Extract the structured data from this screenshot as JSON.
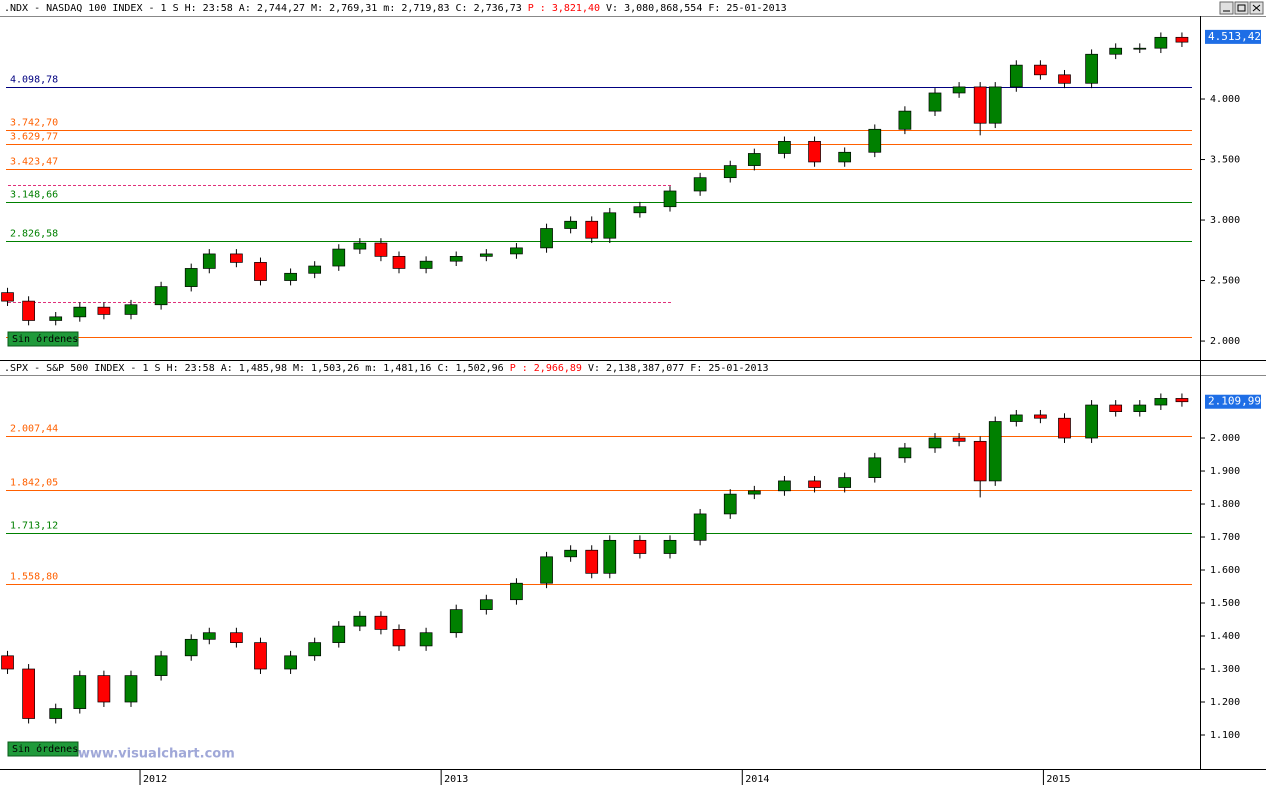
{
  "watermark": "www.visualchart.com",
  "chart_data": [
    {
      "type": "candlestick",
      "header": [
        ".NDX - NASDAQ 100 INDEX -  1 S H: 23:58 A: 2,744,27 M: 2,769,31 m: 2,719,83 C: 2,736,73",
        "P : 3,821,40",
        "V: 3,080,868,554 F: 25-01-2013"
      ],
      "annotation": "Sin órdenes",
      "up_color": "#008000",
      "down_color": "#ff0000",
      "xlim": [
        2011.535,
        2015.52
      ],
      "ylim": [
        1860,
        4686
      ],
      "yticks": [
        {
          "value": 2000,
          "label": "2.000"
        },
        {
          "value": 2500,
          "label": "2.500"
        },
        {
          "value": 3000,
          "label": "3.000"
        },
        {
          "value": 3500,
          "label": "3.500"
        },
        {
          "value": 4000,
          "label": "4.000"
        }
      ],
      "last_price": {
        "value": 4513.42,
        "label": "4.513,42"
      },
      "levels": [
        {
          "value": 4098.78,
          "label": "4.098,78",
          "color": "#000080"
        },
        {
          "value": 3742.7,
          "label": "3.742,70",
          "color": "#ff6000"
        },
        {
          "value": 3629.77,
          "label": "3.629,77",
          "color": "#ff6000"
        },
        {
          "value": 3423.47,
          "label": "3.423,47",
          "color": "#ff6000"
        },
        {
          "value": 3289,
          "color": "#e0307a",
          "style": "dashed"
        },
        {
          "value": 3148.66,
          "label": "3.148,66",
          "color": "#008000"
        },
        {
          "value": 2826.58,
          "label": "2.826,58",
          "color": "#008000"
        },
        {
          "value": 2322,
          "color": "#e0307a",
          "style": "dashed"
        },
        {
          "value": 2033,
          "color": "#ff6000"
        }
      ],
      "x": [
        2011.56,
        2011.63,
        2011.72,
        2011.8,
        2011.88,
        2011.97,
        2012.07,
        2012.17,
        2012.23,
        2012.32,
        2012.4,
        2012.5,
        2012.58,
        2012.66,
        2012.73,
        2012.8,
        2012.86,
        2012.95,
        2013.05,
        2013.15,
        2013.25,
        2013.35,
        2013.43,
        2013.5,
        2013.56,
        2013.66,
        2013.76,
        2013.86,
        2013.96,
        2014.04,
        2014.14,
        2014.24,
        2014.34,
        2014.44,
        2014.54,
        2014.64,
        2014.72,
        2014.79,
        2014.84,
        2014.91,
        2014.99,
        2015.07,
        2015.16,
        2015.24,
        2015.32,
        2015.39,
        2015.46
      ],
      "open": [
        2400,
        2330,
        2170,
        2200,
        2280,
        2220,
        2300,
        2450,
        2600,
        2720,
        2650,
        2500,
        2560,
        2620,
        2760,
        2810,
        2700,
        2600,
        2660,
        2700,
        2720,
        2770,
        2930,
        2990,
        2850,
        3060,
        3110,
        3240,
        3350,
        3450,
        3550,
        3650,
        3480,
        3560,
        3750,
        3900,
        4050,
        4100,
        3800,
        4100,
        4280,
        4200,
        4130,
        4370,
        4420,
        4420,
        4510
      ],
      "high": [
        2440,
        2370,
        2240,
        2320,
        2320,
        2340,
        2490,
        2640,
        2760,
        2760,
        2690,
        2600,
        2660,
        2800,
        2850,
        2850,
        2740,
        2700,
        2740,
        2760,
        2810,
        2970,
        3030,
        3030,
        3100,
        3150,
        3280,
        3390,
        3490,
        3590,
        3690,
        3690,
        3600,
        3790,
        3940,
        4090,
        4140,
        4140,
        4140,
        4320,
        4320,
        4240,
        4410,
        4460,
        4460,
        4550,
        4550
      ],
      "low": [
        2290,
        2130,
        2130,
        2160,
        2180,
        2180,
        2260,
        2410,
        2560,
        2610,
        2460,
        2460,
        2520,
        2580,
        2720,
        2660,
        2560,
        2560,
        2620,
        2660,
        2680,
        2730,
        2890,
        2810,
        2810,
        3020,
        3070,
        3200,
        3310,
        3410,
        3510,
        3440,
        3440,
        3520,
        3710,
        3860,
        4010,
        3700,
        3760,
        4060,
        4160,
        4090,
        4090,
        4330,
        4380,
        4380,
        4430
      ],
      "close": [
        2330,
        2170,
        2200,
        2280,
        2220,
        2300,
        2450,
        2600,
        2720,
        2650,
        2500,
        2560,
        2620,
        2760,
        2810,
        2700,
        2600,
        2660,
        2700,
        2720,
        2770,
        2930,
        2990,
        2850,
        3060,
        3110,
        3240,
        3350,
        3450,
        3550,
        3650,
        3480,
        3560,
        3750,
        3900,
        4050,
        4100,
        3800,
        4100,
        4280,
        4200,
        4130,
        4370,
        4420,
        4420,
        4510,
        4470
      ]
    },
    {
      "type": "candlestick",
      "header": [
        ".SPX - S&P 500 INDEX -  1 S H: 23:58 A: 1,485,98 M: 1,503,26 m: 1,481,16 C: 1,502,96",
        "P : 2,966,89",
        "V: 2,138,387,077 F: 25-01-2013"
      ],
      "annotation": "Sin órdenes",
      "up_color": "#008000",
      "down_color": "#ff0000",
      "xlim": [
        2011.535,
        2015.52
      ],
      "xticks": [
        2012,
        2013,
        2014,
        2015
      ],
      "ylim": [
        1000,
        2191
      ],
      "yticks": [
        {
          "value": 1100,
          "label": "1.100"
        },
        {
          "value": 1200,
          "label": "1.200"
        },
        {
          "value": 1300,
          "label": "1.300"
        },
        {
          "value": 1400,
          "label": "1.400"
        },
        {
          "value": 1500,
          "label": "1.500"
        },
        {
          "value": 1600,
          "label": "1.600"
        },
        {
          "value": 1700,
          "label": "1.700"
        },
        {
          "value": 1800,
          "label": "1.800"
        },
        {
          "value": 1900,
          "label": "1.900"
        },
        {
          "value": 2000,
          "label": "2.000"
        }
      ],
      "last_price": {
        "value": 2109.99,
        "label": "2.109,99"
      },
      "levels": [
        {
          "value": 2007.44,
          "label": "2.007,44",
          "color": "#ff6000"
        },
        {
          "value": 1842.05,
          "label": "1.842,05",
          "color": "#ff6000"
        },
        {
          "value": 1713.12,
          "label": "1.713,12",
          "color": "#008000"
        },
        {
          "value": 1558.8,
          "label": "1.558,80",
          "color": "#ff6000"
        }
      ],
      "x": [
        2011.56,
        2011.63,
        2011.72,
        2011.8,
        2011.88,
        2011.97,
        2012.07,
        2012.17,
        2012.23,
        2012.32,
        2012.4,
        2012.5,
        2012.58,
        2012.66,
        2012.73,
        2012.8,
        2012.86,
        2012.95,
        2013.05,
        2013.15,
        2013.25,
        2013.35,
        2013.43,
        2013.5,
        2013.56,
        2013.66,
        2013.76,
        2013.86,
        2013.96,
        2014.04,
        2014.14,
        2014.24,
        2014.34,
        2014.44,
        2014.54,
        2014.64,
        2014.72,
        2014.79,
        2014.84,
        2014.91,
        2014.99,
        2015.07,
        2015.16,
        2015.24,
        2015.32,
        2015.39,
        2015.46
      ],
      "open": [
        1340,
        1300,
        1150,
        1180,
        1280,
        1200,
        1280,
        1340,
        1390,
        1410,
        1380,
        1300,
        1340,
        1380,
        1430,
        1460,
        1420,
        1370,
        1410,
        1480,
        1510,
        1560,
        1640,
        1660,
        1590,
        1690,
        1650,
        1690,
        1770,
        1830,
        1840,
        1870,
        1850,
        1880,
        1940,
        1970,
        2000,
        1990,
        1870,
        2050,
        2070,
        2060,
        2000,
        2100,
        2080,
        2100,
        2120
      ],
      "high": [
        1355,
        1315,
        1195,
        1295,
        1295,
        1295,
        1355,
        1405,
        1425,
        1425,
        1395,
        1355,
        1395,
        1445,
        1475,
        1475,
        1435,
        1425,
        1495,
        1525,
        1575,
        1655,
        1675,
        1675,
        1705,
        1705,
        1705,
        1785,
        1845,
        1855,
        1885,
        1885,
        1895,
        1955,
        1985,
        2015,
        2015,
        2005,
        2065,
        2085,
        2085,
        2075,
        2115,
        2115,
        2115,
        2135,
        2135
      ],
      "low": [
        1285,
        1135,
        1135,
        1165,
        1185,
        1185,
        1265,
        1325,
        1375,
        1365,
        1285,
        1285,
        1325,
        1365,
        1415,
        1405,
        1355,
        1355,
        1395,
        1465,
        1495,
        1545,
        1625,
        1575,
        1575,
        1635,
        1635,
        1675,
        1755,
        1815,
        1825,
        1835,
        1835,
        1865,
        1925,
        1955,
        1975,
        1820,
        1855,
        2035,
        2045,
        1985,
        1985,
        2065,
        2065,
        2085,
        2095
      ],
      "close": [
        1300,
        1150,
        1180,
        1280,
        1200,
        1280,
        1340,
        1390,
        1410,
        1380,
        1300,
        1340,
        1380,
        1430,
        1460,
        1420,
        1370,
        1410,
        1480,
        1510,
        1560,
        1640,
        1660,
        1590,
        1690,
        1650,
        1690,
        1770,
        1830,
        1840,
        1870,
        1850,
        1880,
        1940,
        1970,
        2000,
        1990,
        1870,
        2050,
        2070,
        2060,
        2000,
        2100,
        2080,
        2100,
        2120,
        2110
      ]
    }
  ]
}
